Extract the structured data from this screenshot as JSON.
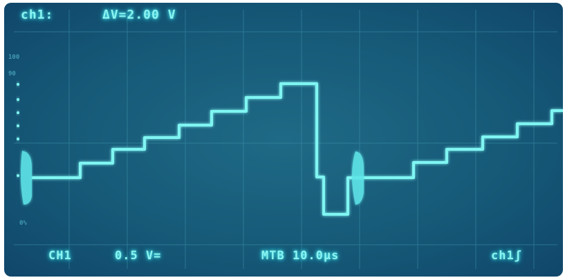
{
  "screen": {
    "header_channel": "ch1:",
    "header_delta": "ΔV=2.00 V",
    "footer_channel": "CH1",
    "footer_volts": "0.5 V=",
    "footer_time": "MTB 10.0μs",
    "footer_trigger": "ch1ʃ"
  },
  "scale": {
    "label_100": "100",
    "label_90": "90",
    "label_0": "0%"
  },
  "colors": {
    "trace": "#7ff5f2",
    "screen": "#165a78",
    "grid": "#3f93ab"
  }
}
